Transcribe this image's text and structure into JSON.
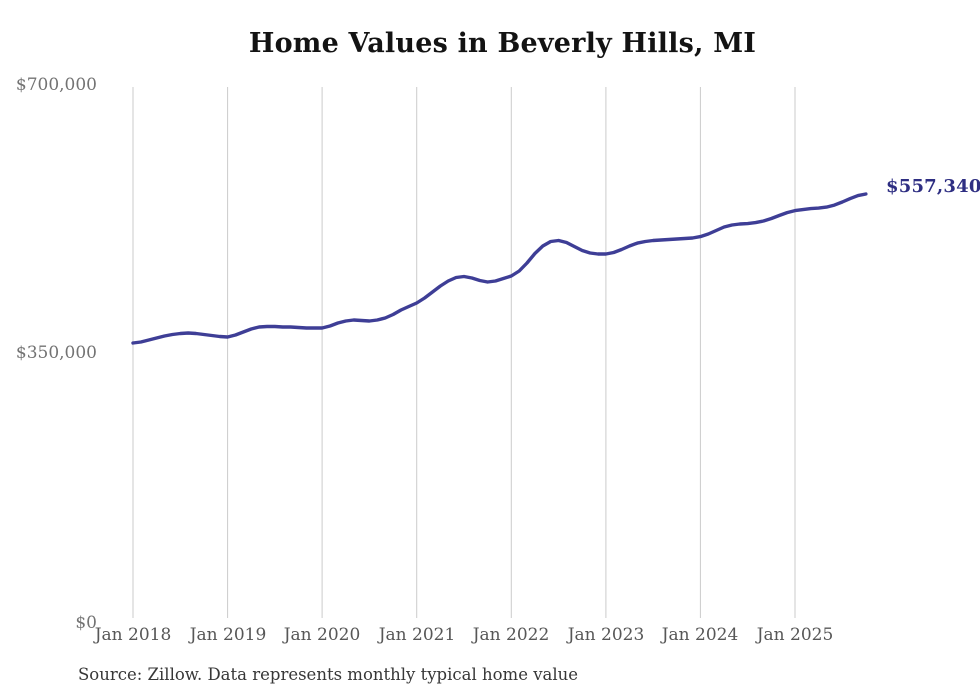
{
  "chart_data": {
    "type": "line",
    "title": "Home Values in Beverly Hills, MI",
    "source": "Source: Zillow. Data represents monthly typical home value",
    "end_label": "$557,340",
    "latest_value": 557340,
    "xlabel": "",
    "ylabel": "",
    "legend": "none",
    "grid": "vertical-only",
    "y_axis": {
      "min": 0,
      "max": 700000,
      "tick_values": [
        700000,
        350000,
        0
      ],
      "tick_labels": [
        "$700,000",
        "$350,000",
        "$0"
      ]
    },
    "x_tick_labels": [
      "Jan 2018",
      "Jan 2019",
      "Jan 2020",
      "Jan 2021",
      "Jan 2022",
      "Jan 2023",
      "Jan 2024",
      "Jan 2025"
    ],
    "colors": {
      "line": "#3e3e96",
      "end_label": "#2e2e82",
      "grid": "#cbcbcb",
      "y_tick_text": "#737373",
      "x_tick_text": "#575757",
      "title_text": "#131313",
      "source_text": "#373737",
      "background": "#ffffff"
    },
    "series": [
      {
        "name": "Typical home value",
        "frequency": "monthly",
        "x": [
          "2018-01",
          "2018-02",
          "2018-03",
          "2018-04",
          "2018-05",
          "2018-06",
          "2018-07",
          "2018-08",
          "2018-09",
          "2018-10",
          "2018-11",
          "2018-12",
          "2019-01",
          "2019-02",
          "2019-03",
          "2019-04",
          "2019-05",
          "2019-06",
          "2019-07",
          "2019-08",
          "2019-09",
          "2019-10",
          "2019-11",
          "2019-12",
          "2020-01",
          "2020-02",
          "2020-03",
          "2020-04",
          "2020-05",
          "2020-06",
          "2020-07",
          "2020-08",
          "2020-09",
          "2020-10",
          "2020-11",
          "2020-12",
          "2021-01",
          "2021-02",
          "2021-03",
          "2021-04",
          "2021-05",
          "2021-06",
          "2021-07",
          "2021-08",
          "2021-09",
          "2021-10",
          "2021-11",
          "2021-12",
          "2022-01",
          "2022-02",
          "2022-03",
          "2022-04",
          "2022-05",
          "2022-06",
          "2022-07",
          "2022-08",
          "2022-09",
          "2022-10",
          "2022-11",
          "2022-12",
          "2023-01",
          "2023-02",
          "2023-03",
          "2023-04",
          "2023-05",
          "2023-06",
          "2023-07",
          "2023-08",
          "2023-09",
          "2023-10",
          "2023-11",
          "2023-12",
          "2024-01",
          "2024-02",
          "2024-03",
          "2024-04",
          "2024-05",
          "2024-06",
          "2024-07",
          "2024-08",
          "2024-09",
          "2024-10",
          "2024-11",
          "2024-12",
          "2025-01",
          "2025-02",
          "2025-03",
          "2025-04",
          "2025-05",
          "2025-06",
          "2025-07",
          "2025-08",
          "2025-09",
          "2025-10"
        ],
        "values": [
          362400,
          363700,
          366300,
          369000,
          371600,
          373500,
          374900,
          375500,
          374900,
          373500,
          372200,
          370900,
          370300,
          372900,
          376800,
          380700,
          383400,
          384000,
          384000,
          383400,
          383400,
          382700,
          382100,
          382100,
          382100,
          384700,
          388600,
          391200,
          392500,
          391900,
          391200,
          392500,
          395100,
          399700,
          405600,
          410200,
          414800,
          421300,
          429200,
          437000,
          443500,
          448100,
          449400,
          447500,
          444200,
          442200,
          443500,
          446800,
          450100,
          456600,
          467100,
          479500,
          489300,
          495200,
          496500,
          493900,
          488700,
          483400,
          480200,
          478900,
          478900,
          480800,
          484800,
          489300,
          493200,
          495200,
          496500,
          497200,
          497800,
          498500,
          499100,
          499800,
          501700,
          505000,
          509600,
          514200,
          516800,
          518100,
          518700,
          520000,
          522000,
          525300,
          529200,
          533100,
          535700,
          537000,
          538300,
          539000,
          540300,
          542900,
          546900,
          551400,
          555300,
          557340
        ]
      }
    ]
  }
}
